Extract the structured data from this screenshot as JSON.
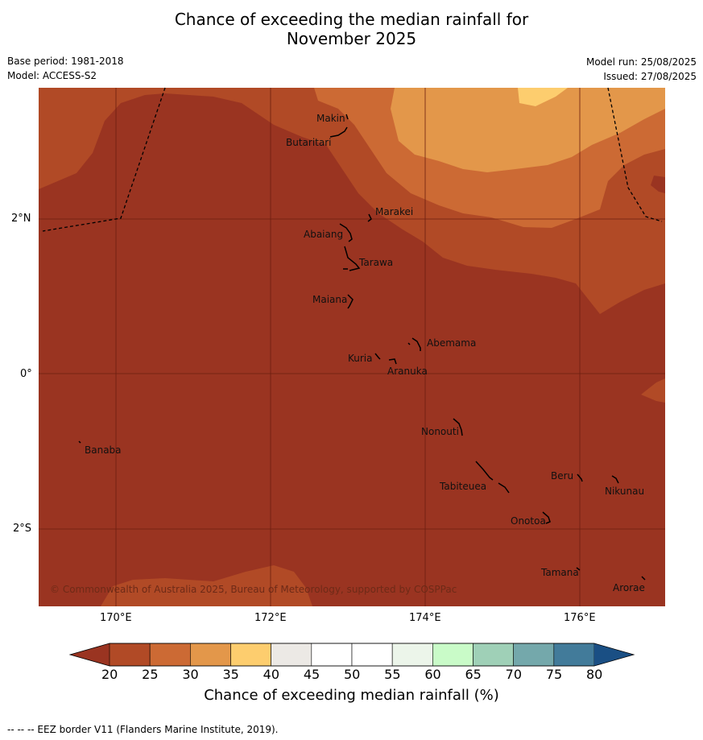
{
  "title": {
    "line1": "Chance of exceeding the median rainfall for",
    "line2": "November 2025"
  },
  "meta": {
    "base_period": "Base period: 1981-2018",
    "model": "Model: ACCESS-S2",
    "model_run": "Model run: 25/08/2025",
    "issued": "Issued: 27/08/2025"
  },
  "map": {
    "lon_labels": [
      "170°E",
      "172°E",
      "174°E",
      "176°E"
    ],
    "lat_labels": [
      "2°N",
      "0°",
      "2°S"
    ],
    "copyright": "© Commonwealth of Australia 2025, Bureau of Meteorology, supported by COSPPac",
    "islands": [
      "Makin",
      "Butaritari",
      "Marakei",
      "Abaiang",
      "Tarawa",
      "Maiana",
      "Abemama",
      "Kuria",
      "Aranuka",
      "Nonouti",
      "Banaba",
      "Beru",
      "Nikunau",
      "Tabiteuea",
      "Onotoa",
      "Tamana",
      "Arorae"
    ]
  },
  "colorbar": {
    "ticks": [
      "20",
      "25",
      "30",
      "35",
      "40",
      "45",
      "50",
      "55",
      "60",
      "65",
      "70",
      "75",
      "80"
    ],
    "colors": [
      "#9a3421",
      "#b14a26",
      "#cc6a34",
      "#e3974a",
      "#fdcd6e",
      "#ece9e5",
      "#ffffff",
      "#ffffff",
      "#ecf5ea",
      "#c9fbc8",
      "#9fd0b7",
      "#74a8ab",
      "#427b9a",
      "#1a4f84"
    ],
    "label": "Chance of exceeding median rainfall (%)"
  },
  "footer": "--  --  -- EEZ border V11 (Flanders Marine Institute, 2019)."
}
